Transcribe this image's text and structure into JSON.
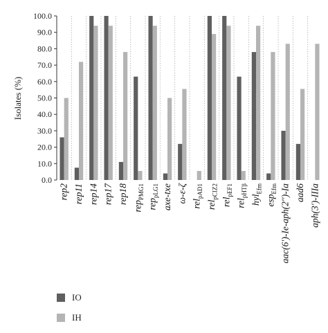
{
  "chart_data": {
    "type": "bar",
    "ylabel": "Isolates (%)",
    "ylim": [
      0,
      100
    ],
    "yticks": [
      "0.0",
      "10.0",
      "20.0",
      "30.0",
      "40.0",
      "50.0",
      "60.0",
      "70.0",
      "80.0",
      "90.0",
      "100.0"
    ],
    "grid": "vertical-dotted",
    "legend_position": "bottom-left",
    "categories": [
      [
        {
          "t": "rep2"
        }
      ],
      [
        {
          "t": "rep11"
        }
      ],
      [
        {
          "t": "rep14"
        }
      ],
      [
        {
          "t": "rep17"
        }
      ],
      [
        {
          "t": "rep18"
        }
      ],
      [
        {
          "t": "rep"
        },
        {
          "t": "PMG1",
          "sub": true
        }
      ],
      [
        {
          "t": "rep"
        },
        {
          "t": "pLG1",
          "sub": true
        }
      ],
      [
        {
          "t": "axe-txe"
        }
      ],
      [
        {
          "t": "ω-ε-ζ"
        }
      ],
      [
        {
          "t": "rel"
        },
        {
          "t": "pAD1",
          "sub": true
        }
      ],
      [
        {
          "t": "rel"
        },
        {
          "t": "pCIZ2",
          "sub": true
        }
      ],
      [
        {
          "t": "rel"
        },
        {
          "t": "pEF1",
          "sub": true
        }
      ],
      [
        {
          "t": "rel"
        },
        {
          "t": "pHTβ",
          "sub": true
        }
      ],
      [
        {
          "t": "hyl"
        },
        {
          "t": "Efm",
          "sub": true
        }
      ],
      [
        {
          "t": "esp"
        },
        {
          "t": "Efm",
          "sub": true
        }
      ],
      [
        {
          "t": "aac(6′)-Ie-aph(2′′)-Ia"
        }
      ],
      [
        {
          "t": "aad6"
        }
      ],
      [
        {
          "t": "aph(3′)-IIIa"
        }
      ]
    ],
    "series": [
      {
        "name": "IO",
        "color": "#5f5f5f",
        "values": [
          26,
          7.5,
          100,
          100,
          11,
          63,
          100,
          4,
          22,
          0,
          100,
          100,
          63,
          78,
          4,
          30,
          22,
          0
        ]
      },
      {
        "name": "IH",
        "color": "#b4b4b4",
        "values": [
          50,
          72,
          94,
          94,
          78,
          5.5,
          94,
          50,
          55.5,
          5.5,
          89,
          94,
          5.5,
          94,
          78,
          83,
          55.5,
          83
        ]
      }
    ]
  }
}
